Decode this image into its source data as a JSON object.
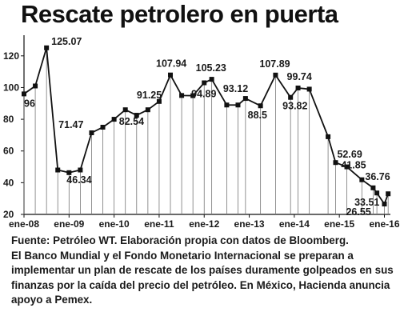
{
  "title": "Rescate petrolero en puerta",
  "source": {
    "credit": "Fuente: Petróleo WT. Elaboración propia con datos de Bloomberg.",
    "text": "El Banco Mundial y el Fondo Monetario Internacional se preparan a implementar un plan de rescate de los países duramente golpeados en sus finanzas por la caída del precio del petróleo. En México, Hacienda anuncia apoyo a Pemex."
  },
  "colors": {
    "line": "#111111",
    "marker": "#111111",
    "drop_line": "#777777",
    "axis": "#111111"
  },
  "chart_data": {
    "type": "line",
    "title": "Rescate petrolero en puerta",
    "xlabel": "",
    "ylabel": "",
    "ylim": [
      20,
      130
    ],
    "yticks": [
      20,
      40,
      60,
      80,
      100,
      120
    ],
    "xticks": [
      "ene-08",
      "ene-09",
      "ene-10",
      "ene-11",
      "ene-12",
      "ene-13",
      "ene-14",
      "ene-15",
      "ene-16"
    ],
    "grid": false,
    "legend": "none",
    "points": [
      {
        "x": "ene-08",
        "y": 96,
        "label": "96"
      },
      {
        "x": "abr-08",
        "y": 101
      },
      {
        "x": "jul-08",
        "y": 125.07,
        "label": "125.07"
      },
      {
        "x": "oct-08",
        "y": 48
      },
      {
        "x": "ene-09",
        "y": 46.34,
        "label": "46.34"
      },
      {
        "x": "abr-09",
        "y": 48
      },
      {
        "x": "jul-09",
        "y": 71.47,
        "label": "71.47"
      },
      {
        "x": "oct-09",
        "y": 75
      },
      {
        "x": "ene-10",
        "y": 80
      },
      {
        "x": "abr-10",
        "y": 86
      },
      {
        "x": "jul-10",
        "y": 82.54,
        "label": "82.54"
      },
      {
        "x": "oct-10",
        "y": 86
      },
      {
        "x": "ene-11",
        "y": 91.25,
        "label": "91.25"
      },
      {
        "x": "abr-11",
        "y": 107.94,
        "label": "107.94"
      },
      {
        "x": "jul-11",
        "y": 95
      },
      {
        "x": "oct-11",
        "y": 94.89,
        "label": "94.89"
      },
      {
        "x": "ene-12",
        "y": 103
      },
      {
        "x": "mar-12",
        "y": 105.23,
        "label": "105.23"
      },
      {
        "x": "jul-12",
        "y": 89
      },
      {
        "x": "oct-12",
        "y": 89
      },
      {
        "x": "dic-12",
        "y": 93.12,
        "label": "93.12"
      },
      {
        "x": "abr-13",
        "y": 88.5,
        "label": "88.5"
      },
      {
        "x": "ago-13",
        "y": 107.89,
        "label": "107.89"
      },
      {
        "x": "dic-13",
        "y": 93.82,
        "label": "93.82"
      },
      {
        "x": "feb-14",
        "y": 99.74,
        "label": "99.74"
      },
      {
        "x": "may-14",
        "y": 99
      },
      {
        "x": "oct-14",
        "y": 69
      },
      {
        "x": "dic-14",
        "y": 52.69,
        "label": "52.69"
      },
      {
        "x": "mar-15",
        "y": 50
      },
      {
        "x": "jul-15",
        "y": 41.85,
        "label": "41.85"
      },
      {
        "x": "oct-15",
        "y": 36.76,
        "label": "36.76"
      },
      {
        "x": "nov-15",
        "y": 33.51,
        "label": "33.51"
      },
      {
        "x": "ene-16",
        "y": 26.55,
        "label": "26.55"
      },
      {
        "x": "feb-16",
        "y": 33
      }
    ]
  }
}
